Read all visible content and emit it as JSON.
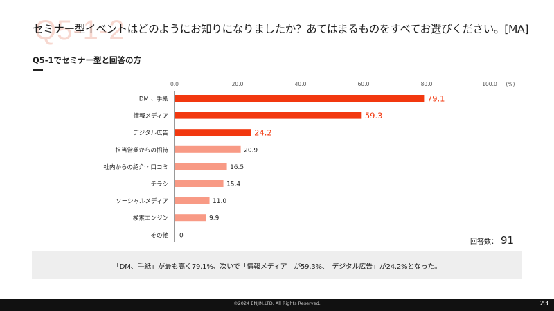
{
  "header": {
    "watermark": "Q5-1-2",
    "title": "セミナー型イベントはどのようにお知りになりましたか？あてはまるものをすべてお選びください。[MA]",
    "subtitle": "Q5-1でセミナー型と回答の方"
  },
  "colors": {
    "highlight": "#f2380f",
    "normal": "#f89a85",
    "axis": "#333333"
  },
  "chart_data": {
    "type": "bar",
    "orientation": "horizontal",
    "unit": "(%)",
    "categories": [
      "DM 、手紙",
      "情報メディア",
      "デジタル広告",
      "担当営業からの招待",
      "社内からの紹介・口コミ",
      "チラシ",
      "ソーシャルメディア",
      "検索エンジン",
      "その他"
    ],
    "values": [
      79.1,
      59.3,
      24.2,
      20.9,
      16.5,
      15.4,
      11.0,
      9.9,
      0
    ],
    "value_labels": [
      "79.1",
      "59.3",
      "24.2",
      "20.9",
      "16.5",
      "15.4",
      "11.0",
      "9.9",
      "0"
    ],
    "highlight_top": 3,
    "xlim": [
      0,
      100
    ],
    "ticks": [
      "0.0",
      "20.0",
      "40.0",
      "60.0",
      "80.0",
      "100.0"
    ],
    "tick_values": [
      0,
      20,
      40,
      60,
      80,
      100
    ]
  },
  "respondents": {
    "label": "回答数：",
    "value": "91"
  },
  "summary": {
    "text": "「DM、手紙」が最も高く79.1%、次いで「情報メディア」が59.3%、「デジタル広告」が24.2%となった。"
  },
  "footer": {
    "copyright": "©2024 ENJIN.LTD. All Rights Reserved.",
    "page_number": "23"
  }
}
